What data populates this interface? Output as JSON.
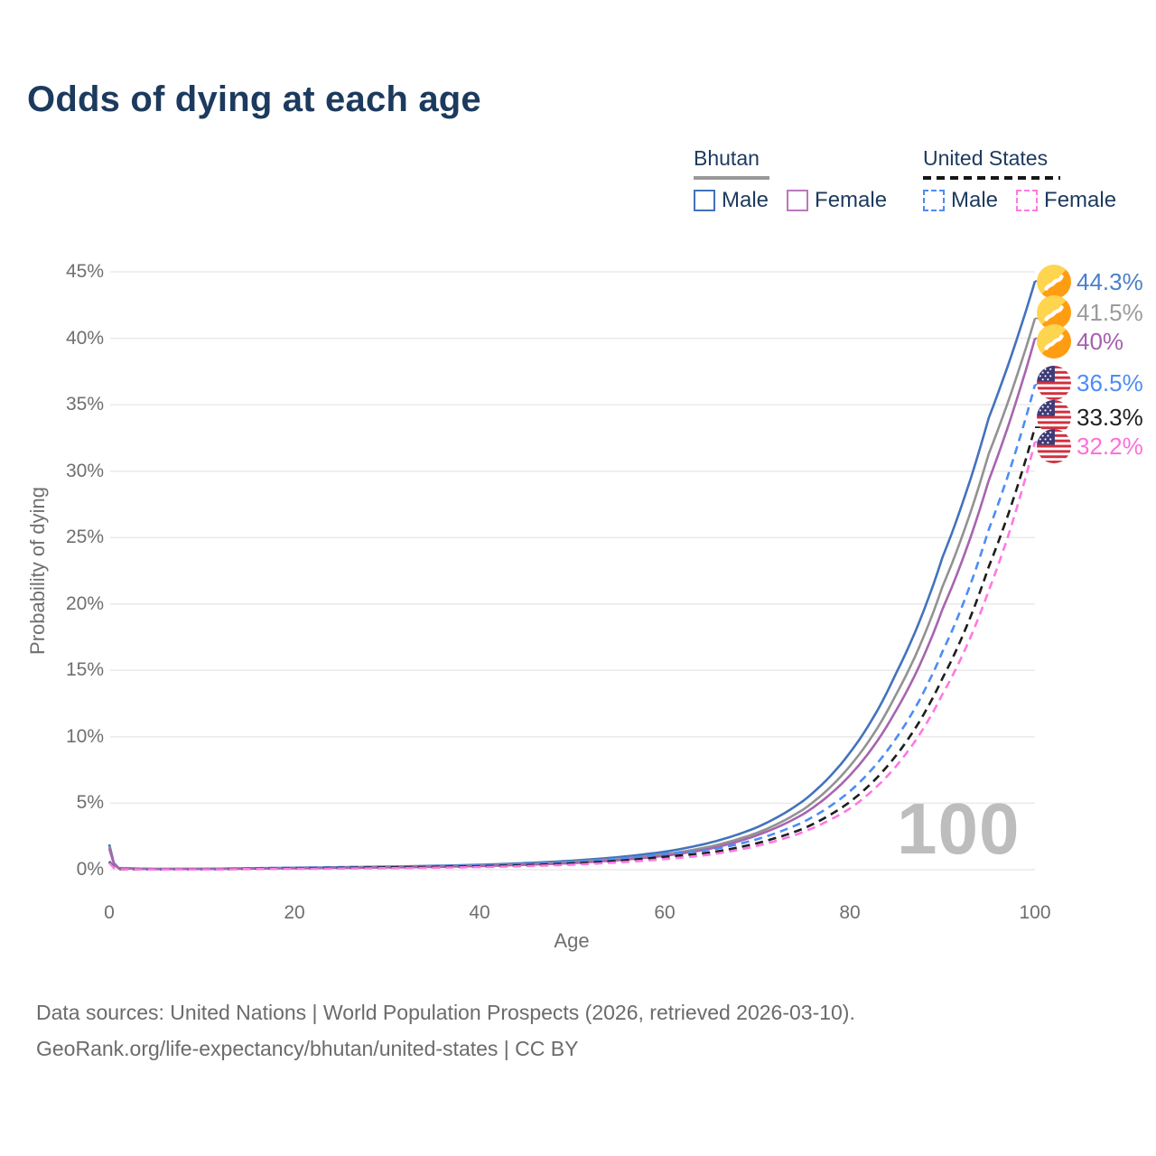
{
  "title": "Odds of dying at each age",
  "legend": {
    "groups": [
      {
        "name": "Bhutan",
        "line_style": "solid",
        "line_color": "#999999",
        "items": [
          {
            "label": "Male",
            "color": "#4273bb",
            "dashed": false
          },
          {
            "label": "Female",
            "color": "#b879bd",
            "dashed": false
          }
        ]
      },
      {
        "name": "United States",
        "line_style": "dashed",
        "line_color": "#161616",
        "items": [
          {
            "label": "Male",
            "color": "#4d8cf5",
            "dashed": true
          },
          {
            "label": "Female",
            "color": "#ff7ae0",
            "dashed": true
          }
        ]
      }
    ]
  },
  "axes": {
    "x": {
      "label": "Age",
      "tick_labels": [
        "0",
        "20",
        "40",
        "60",
        "80",
        "100"
      ]
    },
    "y": {
      "label": "Probability of dying",
      "tick_labels": [
        "0%",
        "5%",
        "10%",
        "15%",
        "20%",
        "25%",
        "30%",
        "35%",
        "40%",
        "45%"
      ]
    }
  },
  "watermark": {
    "text": "100"
  },
  "footer": {
    "line1": "Data sources: United Nations | World Population Prospects (2026, retrieved 2026-03-10).",
    "line2": "GeoRank.org/life-expectancy/bhutan/united-states | CC BY"
  },
  "chart_data": {
    "type": "line",
    "title": "Odds of dying at each age",
    "xlabel": "Age",
    "ylabel": "Probability of dying",
    "xlim": [
      0,
      100
    ],
    "ylim_pct": [
      0,
      45
    ],
    "x_ticks": [
      0,
      20,
      40,
      60,
      80,
      100
    ],
    "y_ticks_pct": [
      0,
      5,
      10,
      15,
      20,
      25,
      30,
      35,
      40,
      45
    ],
    "grid": "horizontal-only",
    "legend_position": "top-right",
    "highlighted_age": 100,
    "ages": [
      0,
      1,
      5,
      10,
      15,
      20,
      25,
      30,
      35,
      40,
      45,
      50,
      55,
      60,
      65,
      70,
      75,
      80,
      85,
      90,
      95,
      100
    ],
    "series": [
      {
        "name": "bhutan-male",
        "country": "Bhutan",
        "sex": "Male",
        "style": "solid",
        "color": "#4273bb",
        "label_color": "#4a7fca",
        "flag": "bhutan",
        "end_label": "44.3%",
        "end_value_pct": 44.3,
        "values_pct": [
          1.9,
          0.13,
          0.06,
          0.07,
          0.11,
          0.15,
          0.19,
          0.23,
          0.29,
          0.37,
          0.5,
          0.68,
          0.95,
          1.35,
          2.05,
          3.2,
          5.2,
          8.8,
          14.8,
          23.5,
          34.0,
          44.3
        ]
      },
      {
        "name": "bhutan-overall",
        "country": "Bhutan",
        "sex": "Both",
        "style": "solid",
        "color": "#929292",
        "label_color": "#9b9b9b",
        "flag": "bhutan",
        "end_label": "41.5%",
        "end_value_pct": 41.5,
        "values_pct": [
          1.75,
          0.12,
          0.055,
          0.062,
          0.095,
          0.13,
          0.165,
          0.2,
          0.25,
          0.32,
          0.43,
          0.59,
          0.82,
          1.16,
          1.76,
          2.78,
          4.55,
          7.8,
          13.2,
          21.3,
          31.3,
          41.5
        ]
      },
      {
        "name": "bhutan-female",
        "country": "Bhutan",
        "sex": "Female",
        "style": "solid",
        "color": "#a765ae",
        "label_color": "#a65fb0",
        "flag": "bhutan",
        "end_label": "40%",
        "end_value_pct": 40,
        "values_pct": [
          1.6,
          0.11,
          0.05,
          0.055,
          0.08,
          0.11,
          0.14,
          0.17,
          0.21,
          0.27,
          0.37,
          0.5,
          0.72,
          1.05,
          1.6,
          2.6,
          4.2,
          7.1,
          12.0,
          19.6,
          29.3,
          40.0
        ]
      },
      {
        "name": "us-male",
        "country": "United States",
        "sex": "Male",
        "style": "dashed",
        "color": "#4d8cf5",
        "label_color": "#4d8cf5",
        "flag": "us",
        "end_label": "36.5%",
        "end_value_pct": 36.5,
        "values_pct": [
          0.64,
          0.045,
          0.022,
          0.03,
          0.09,
          0.14,
          0.19,
          0.23,
          0.27,
          0.32,
          0.42,
          0.58,
          0.82,
          1.2,
          1.5,
          2.3,
          3.6,
          5.9,
          9.9,
          16.4,
          25.6,
          36.5
        ]
      },
      {
        "name": "us-overall",
        "country": "United States",
        "sex": "Both",
        "style": "dashed",
        "color": "#1d1d1d",
        "label_color": "#202020",
        "flag": "us",
        "end_label": "33.3%",
        "end_value_pct": 33.3,
        "values_pct": [
          0.58,
          0.04,
          0.019,
          0.026,
          0.07,
          0.105,
          0.14,
          0.175,
          0.21,
          0.26,
          0.34,
          0.47,
          0.67,
          0.97,
          1.3,
          2.0,
          3.1,
          5.1,
          8.6,
          14.4,
          22.8,
          33.3
        ]
      },
      {
        "name": "us-female",
        "country": "United States",
        "sex": "Female",
        "style": "dashed",
        "color": "#ff78e2",
        "label_color": "#ff6fd8",
        "flag": "us",
        "end_label": "32.2%",
        "end_value_pct": 32.2,
        "values_pct": [
          0.52,
          0.036,
          0.016,
          0.021,
          0.05,
          0.07,
          0.09,
          0.115,
          0.15,
          0.2,
          0.27,
          0.38,
          0.55,
          0.8,
          1.15,
          1.8,
          2.85,
          4.6,
          7.8,
          13.2,
          21.0,
          32.2
        ]
      }
    ]
  }
}
